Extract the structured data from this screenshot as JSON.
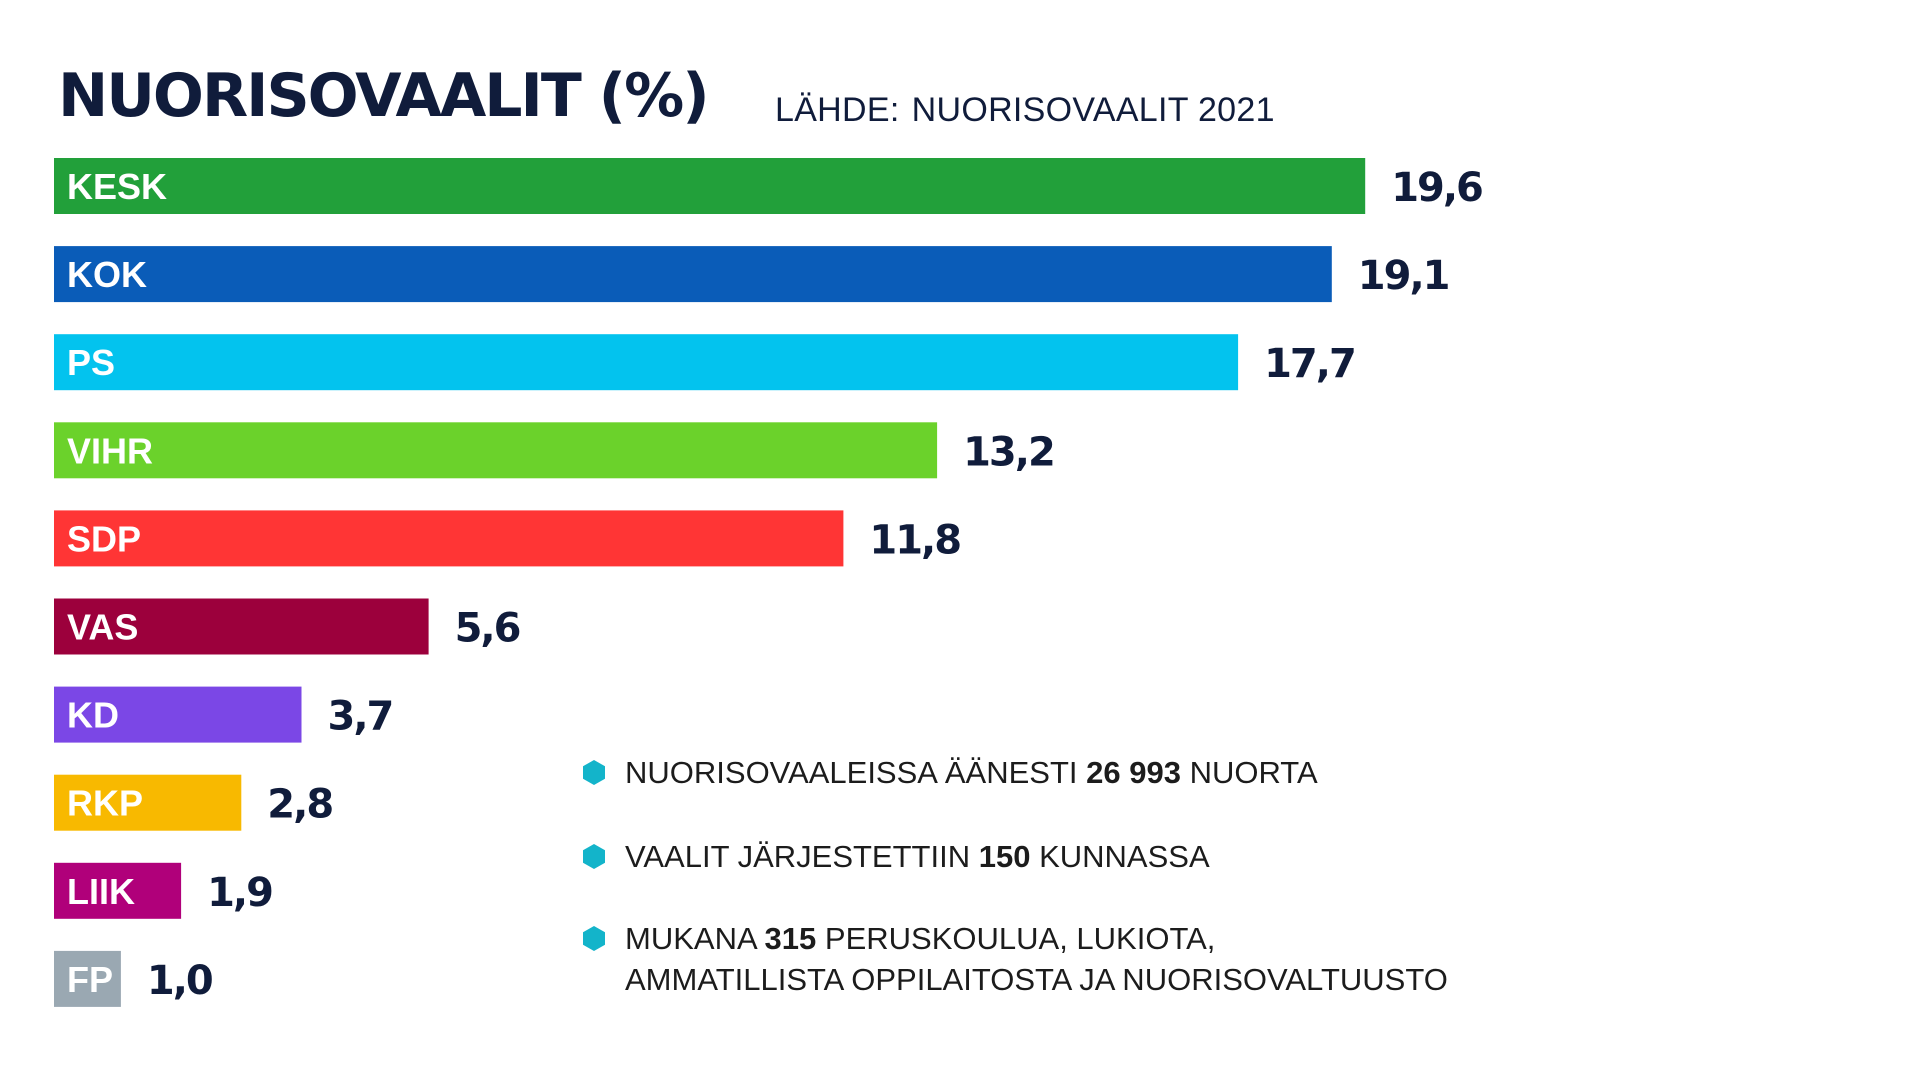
{
  "header": {
    "title": "NUORISOVAALIT (%)",
    "source_label": "LÄHDE:",
    "source_value": "NUORISOVAALIT 2021"
  },
  "chart_data": {
    "type": "bar",
    "orientation": "horizontal",
    "title": "NUORISOVAALIT (%)",
    "subtitle": "LÄHDE:  NUORISOVAALIT 2021",
    "xlabel": "",
    "ylabel": "",
    "unit": "%",
    "grid": false,
    "categories": [
      "KESK",
      "KOK",
      "PS",
      "VIHR",
      "SDP",
      "VAS",
      "KD",
      "RKP",
      "LIIK",
      "FP"
    ],
    "values": [
      19.6,
      19.1,
      17.7,
      13.2,
      11.8,
      5.6,
      3.7,
      2.8,
      1.9,
      1.0
    ],
    "value_labels": [
      "19,6",
      "19,1",
      "17,7",
      "13,2",
      "11,8",
      "5,6",
      "3,7",
      "2,8",
      "1,9",
      "1,0"
    ],
    "colors": [
      "#22a03a",
      "#0a5cb8",
      "#03c3ee",
      "#6bd22b",
      "#ff3535",
      "#9c003c",
      "#7b47e6",
      "#f8b900",
      "#b0007a",
      "#9aa8b2"
    ],
    "xlim": [
      0,
      19.6
    ]
  },
  "notes": [
    {
      "pre": "NUORISOVAALEISSA ÄÄNESTI",
      "bold": "26 993",
      "post": "NUORTA"
    },
    {
      "pre": "VAALIT JÄRJESTETTIIN",
      "bold": "150",
      "post": "KUNNASSA"
    },
    {
      "pre": "MUKANA",
      "bold": "315",
      "post": "PERUSKOULUA, LUKIOTA,",
      "line2": "AMMATILLISTA OPPILAITOSTA JA NUORISOVALTUUSTO"
    }
  ],
  "colors": {
    "text_navy": "#101c3b",
    "bullet": "#13b4ca"
  }
}
